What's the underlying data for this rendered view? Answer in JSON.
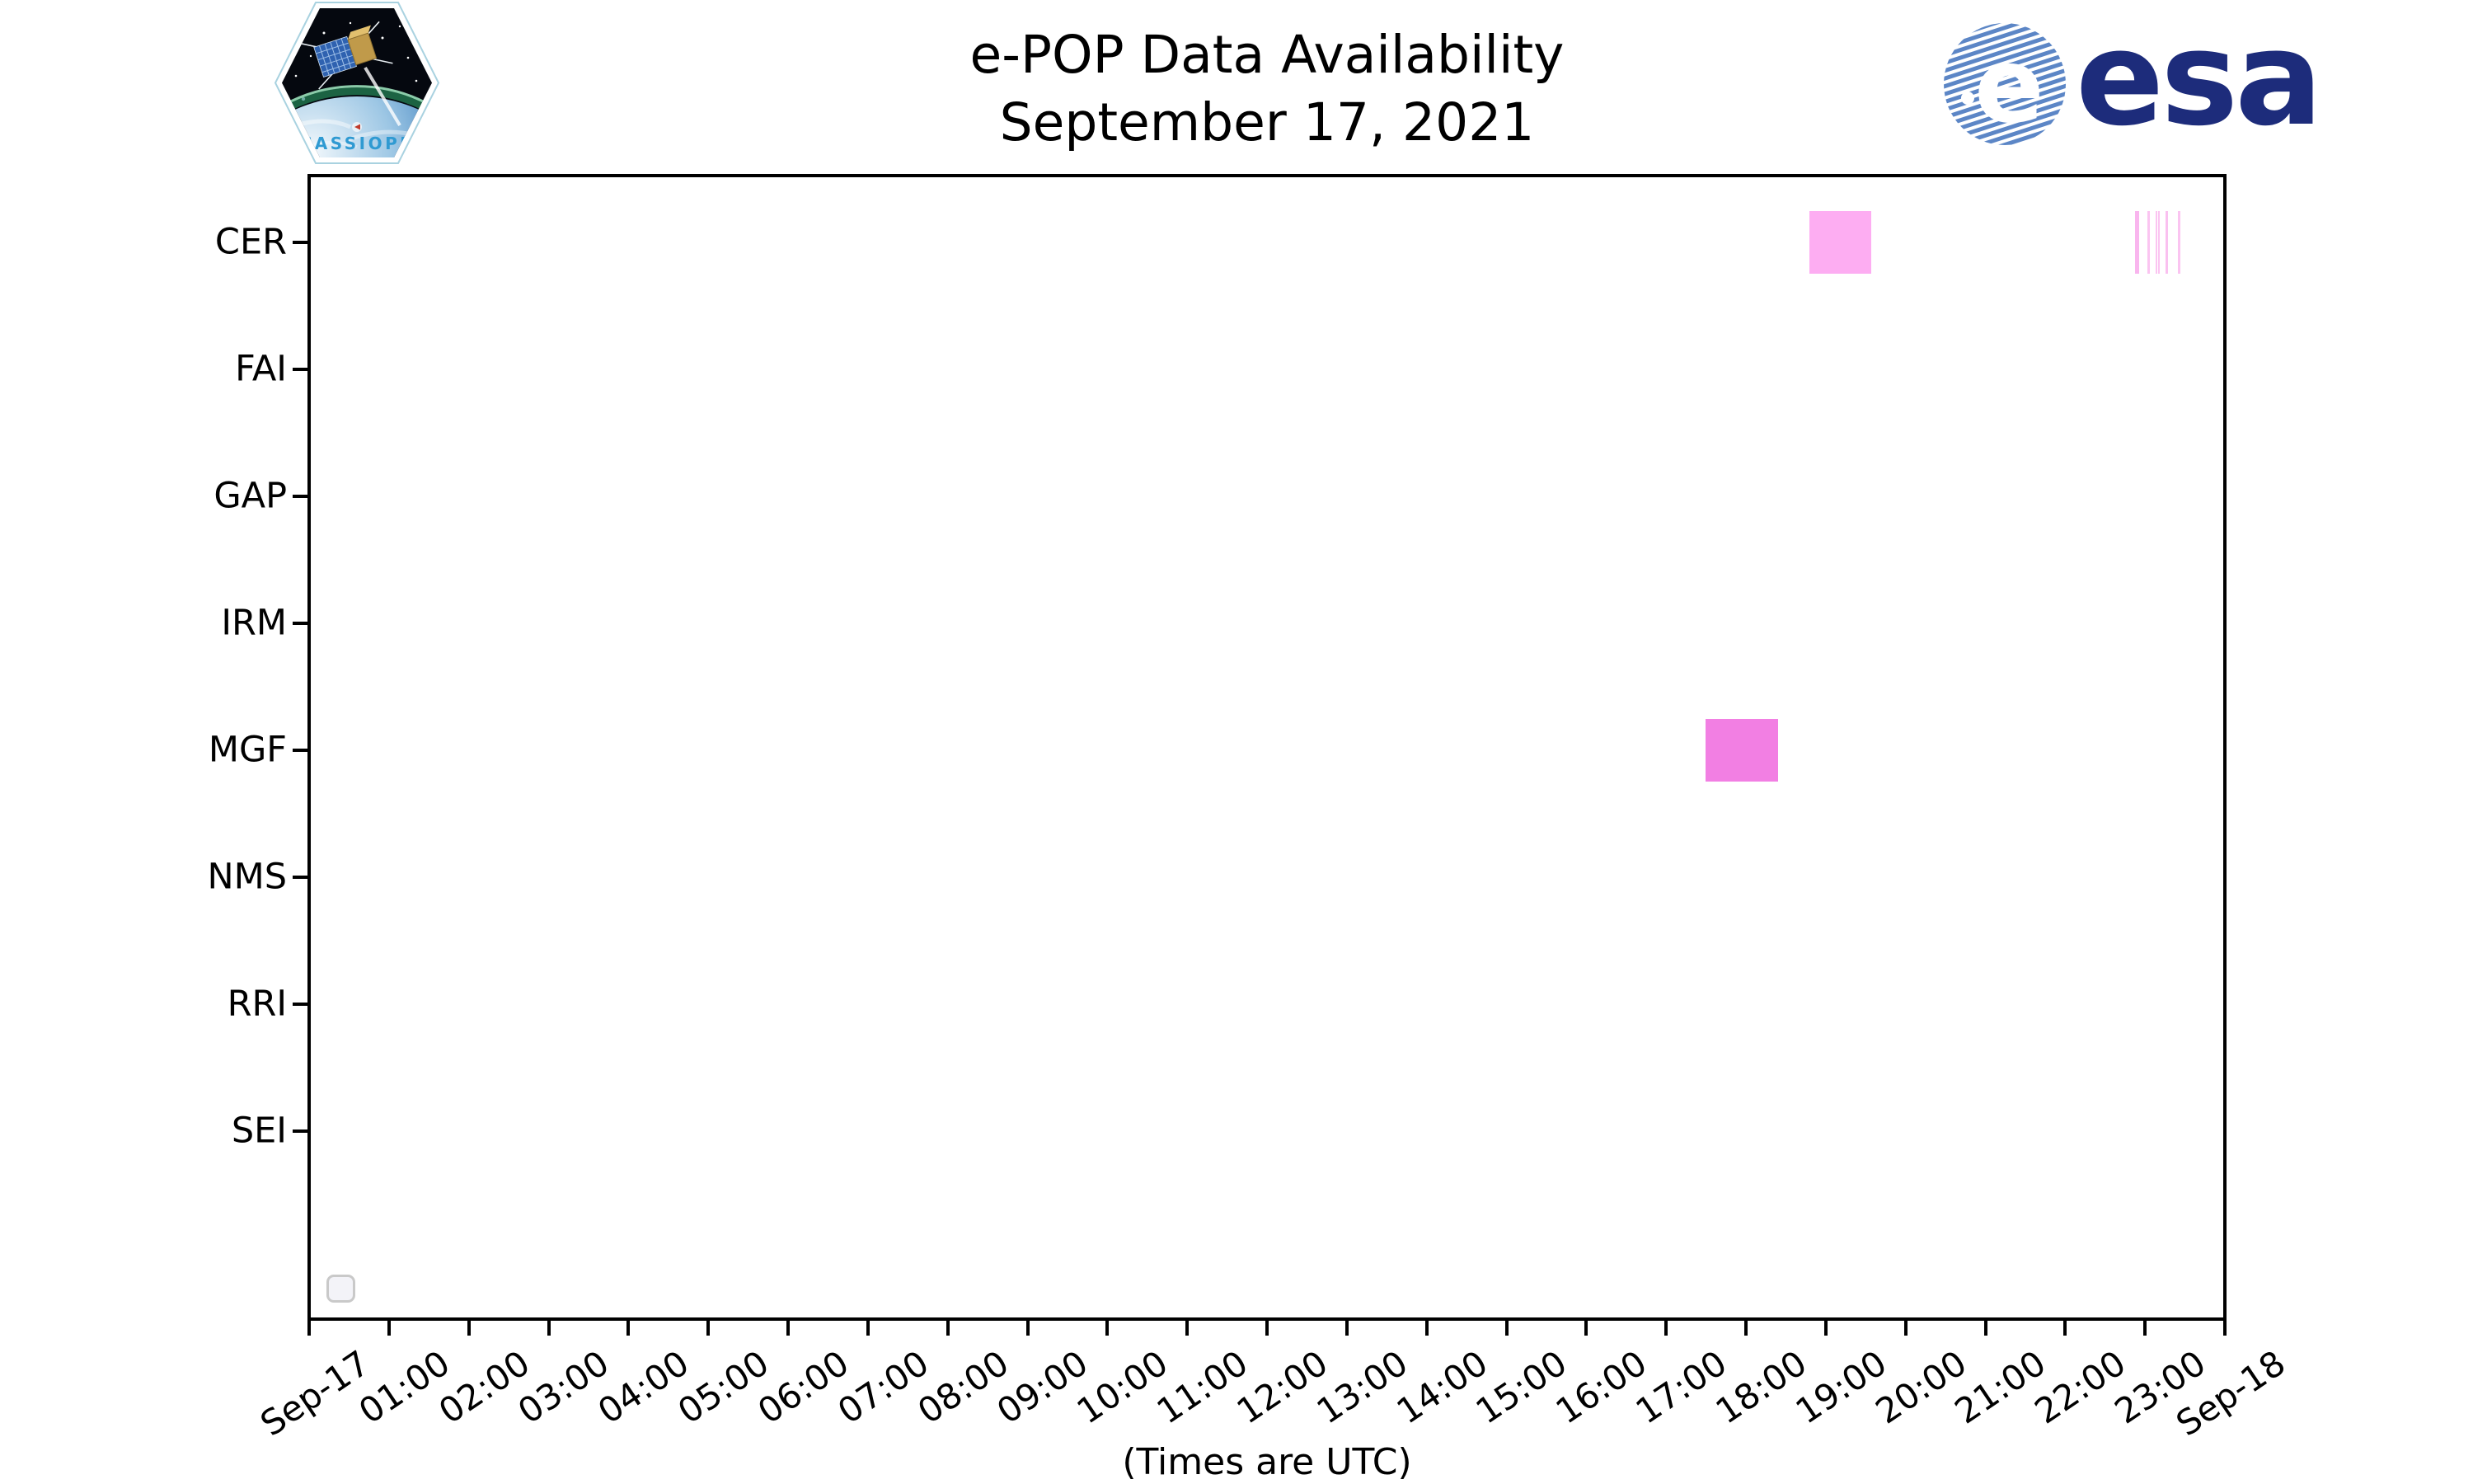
{
  "page": {
    "background": "#ffffff"
  },
  "header": {
    "title_line1": "e-POP Data Availability",
    "title_line2": "September 17, 2021",
    "cassiope_patch": {
      "label": "CASSIOPE",
      "label_color": "#2f9ad2"
    },
    "esa_logo": {
      "wordmark": "esa",
      "navy": "#1d2c7b",
      "stripe_blue": "#5c86c6"
    }
  },
  "chart_data": {
    "type": "bar",
    "variant": "availability-timeline",
    "title": "e-POP Data Availability",
    "subtitle": "September 17, 2021",
    "xlabel": "(Times are UTC)",
    "grid": false,
    "categories": [
      "CER",
      "FAI",
      "GAP",
      "IRM",
      "MGF",
      "NMS",
      "RRI",
      "SEI"
    ],
    "x_axis": {
      "start": "Sep-17 00:00 UTC",
      "end": "Sep-18 00:00 UTC",
      "hours_span": 24,
      "ticks": [
        {
          "label": "Sep-17",
          "hour": 0
        },
        {
          "label": "01:00",
          "hour": 1
        },
        {
          "label": "02:00",
          "hour": 2
        },
        {
          "label": "03:00",
          "hour": 3
        },
        {
          "label": "04:00",
          "hour": 4
        },
        {
          "label": "05:00",
          "hour": 5
        },
        {
          "label": "06:00",
          "hour": 6
        },
        {
          "label": "07:00",
          "hour": 7
        },
        {
          "label": "08:00",
          "hour": 8
        },
        {
          "label": "09:00",
          "hour": 9
        },
        {
          "label": "10:00",
          "hour": 10
        },
        {
          "label": "11:00",
          "hour": 11
        },
        {
          "label": "12:00",
          "hour": 12
        },
        {
          "label": "13:00",
          "hour": 13
        },
        {
          "label": "14:00",
          "hour": 14
        },
        {
          "label": "15:00",
          "hour": 15
        },
        {
          "label": "16:00",
          "hour": 16
        },
        {
          "label": "17:00",
          "hour": 17
        },
        {
          "label": "18:00",
          "hour": 18
        },
        {
          "label": "19:00",
          "hour": 19
        },
        {
          "label": "20:00",
          "hour": 20
        },
        {
          "label": "21:00",
          "hour": 21
        },
        {
          "label": "22:00",
          "hour": 22
        },
        {
          "label": "23:00",
          "hour": 23
        },
        {
          "label": "Sep-18",
          "hour": 24
        }
      ]
    },
    "intervals": [
      {
        "instrument": "CER",
        "start": "18:48",
        "end": "19:34",
        "start_h": 18.796,
        "end_h": 19.571,
        "color": "#fdadf2"
      },
      {
        "instrument": "CER",
        "start": "22:53",
        "end": "22:55",
        "start_h": 22.877,
        "end_h": 22.923,
        "color": "#f9b5ee"
      },
      {
        "instrument": "CER",
        "start": "23:02",
        "end": "23:04",
        "start_h": 23.032,
        "end_h": 23.063,
        "color": "#fbc4f1"
      },
      {
        "instrument": "CER",
        "start": "23:08",
        "end": "23:09",
        "start_h": 23.135,
        "end_h": 23.156,
        "color": "#fbc4f1"
      },
      {
        "instrument": "CER",
        "start": "23:10",
        "end": "23:11",
        "start_h": 23.166,
        "end_h": 23.187,
        "color": "#fbc4f1"
      },
      {
        "instrument": "CER",
        "start": "23:16",
        "end": "23:17",
        "start_h": 23.259,
        "end_h": 23.29,
        "color": "#fac0f0"
      },
      {
        "instrument": "CER",
        "start": "23:25",
        "end": "23:26",
        "start_h": 23.414,
        "end_h": 23.44,
        "color": "#fbc4f1"
      },
      {
        "instrument": "MGF",
        "start": "17:30",
        "end": "18:24",
        "start_h": 17.494,
        "end_h": 18.403,
        "color": "#f27fe3"
      }
    ],
    "legend": {
      "visible": true,
      "entries": []
    }
  }
}
